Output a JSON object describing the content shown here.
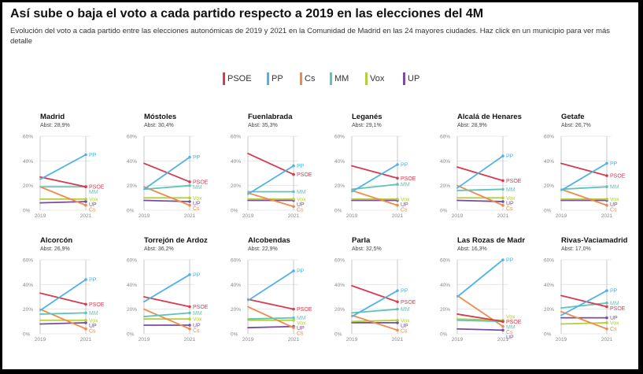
{
  "title": "Así sube o baja el voto a cada partido respecto a 2019 en las elecciones del 4M",
  "subtitle": "Evolución del voto a cada partido entre las elecciones autonómicas de 2019 y 2021 en la Comunidad de Madrid en las 24 mayores ciudades. Haz click en un municipio para ver más detalle",
  "legend": [
    {
      "party": "PSOE",
      "color": "#d93a4e"
    },
    {
      "party": "PP",
      "color": "#4fb3e6"
    },
    {
      "party": "Cs",
      "color": "#f08a4b"
    },
    {
      "party": "MM",
      "color": "#5fc4b6"
    },
    {
      "party": "Vox",
      "color": "#b2cf3c"
    },
    {
      "party": "UP",
      "color": "#7b4ba0"
    }
  ],
  "chart_data": {
    "type": "line",
    "x": [
      "2019",
      "2021"
    ],
    "ylim": [
      0,
      60
    ],
    "yticks": [
      "0%",
      "20%",
      "40%",
      "60%"
    ],
    "panels": [
      {
        "city": "Madrid",
        "abst": "Abst: 28,9%",
        "series": [
          {
            "name": "PSOE",
            "values": [
              27,
              19
            ]
          },
          {
            "name": "PP",
            "values": [
              25,
              45
            ]
          },
          {
            "name": "Cs",
            "values": [
              19,
              4
            ]
          },
          {
            "name": "MM",
            "values": [
              19,
              19
            ]
          },
          {
            "name": "Vox",
            "values": [
              9,
              9
            ]
          },
          {
            "name": "UP",
            "values": [
              6,
              7
            ]
          }
        ],
        "end_labels": [
          "PSOE",
          "PP",
          "Cs",
          "MM",
          "Vox",
          "UP"
        ]
      },
      {
        "city": "Móstoles",
        "abst": "Abst: 30,4%",
        "series": [
          {
            "name": "PSOE",
            "values": [
              38,
              23
            ]
          },
          {
            "name": "PP",
            "values": [
              17,
              43
            ]
          },
          {
            "name": "Cs",
            "values": [
              19,
              4
            ]
          },
          {
            "name": "MM",
            "values": [
              17,
              20
            ]
          },
          {
            "name": "Vox",
            "values": [
              10,
              10
            ]
          },
          {
            "name": "UP",
            "values": [
              8,
              7
            ]
          }
        ],
        "end_labels": [
          "PSOE",
          "PP",
          "Cs",
          "MM",
          "Vox",
          "UP"
        ]
      },
      {
        "city": "Fuenlabrada",
        "abst": "Abst: 35,3%",
        "series": [
          {
            "name": "PSOE",
            "values": [
              46,
              29
            ]
          },
          {
            "name": "PP",
            "values": [
              13,
              36
            ]
          },
          {
            "name": "Cs",
            "values": [
              14,
              3
            ]
          },
          {
            "name": "MM",
            "values": [
              15,
              15
            ]
          },
          {
            "name": "Vox",
            "values": [
              9,
              9
            ]
          },
          {
            "name": "UP",
            "values": [
              8,
              8
            ]
          }
        ],
        "end_labels": [
          "PSOE",
          "PP",
          "Cs",
          "MM",
          "Vox",
          "UP"
        ]
      },
      {
        "city": "Leganés",
        "abst": "Abst: 29,1%",
        "series": [
          {
            "name": "PSOE",
            "values": [
              36,
              26
            ]
          },
          {
            "name": "PP",
            "values": [
              15,
              37
            ]
          },
          {
            "name": "Cs",
            "values": [
              16,
              4
            ]
          },
          {
            "name": "MM",
            "values": [
              17,
              21
            ]
          },
          {
            "name": "Vox",
            "values": [
              9,
              9
            ]
          },
          {
            "name": "UP",
            "values": [
              8,
              8
            ]
          }
        ],
        "end_labels": [
          "PSOE",
          "PP",
          "Cs",
          "MM",
          "Vox",
          "UP"
        ]
      },
      {
        "city": "Alcalá de Henares",
        "abst": "Abst: 28,9%",
        "series": [
          {
            "name": "PSOE",
            "values": [
              35,
              24
            ]
          },
          {
            "name": "PP",
            "values": [
              18,
              44
            ]
          },
          {
            "name": "Cs",
            "values": [
              20,
              4
            ]
          },
          {
            "name": "MM",
            "values": [
              16,
              17
            ]
          },
          {
            "name": "Vox",
            "values": [
              10,
              10
            ]
          },
          {
            "name": "UP",
            "values": [
              8,
              7
            ]
          }
        ],
        "end_labels": [
          "PSOE",
          "PP",
          "Cs",
          "MM",
          "Vox",
          "UP"
        ]
      },
      {
        "city": "Getafe",
        "abst": "Abst: 26,7%",
        "series": [
          {
            "name": "PSOE",
            "values": [
              38,
              28
            ]
          },
          {
            "name": "PP",
            "values": [
              16,
              38
            ]
          },
          {
            "name": "Cs",
            "values": [
              17,
              4
            ]
          },
          {
            "name": "MM",
            "values": [
              17,
              19
            ]
          },
          {
            "name": "Vox",
            "values": [
              9,
              9
            ]
          },
          {
            "name": "UP",
            "values": [
              8,
              8
            ]
          }
        ],
        "end_labels": [
          "PSOE",
          "PP",
          "Cs",
          "MM",
          "Vox",
          "UP"
        ]
      },
      {
        "city": "Alcorcón",
        "abst": "Abst: 26,9%",
        "series": [
          {
            "name": "PSOE",
            "values": [
              33,
              24
            ]
          },
          {
            "name": "PP",
            "values": [
              19,
              44
            ]
          },
          {
            "name": "Cs",
            "values": [
              20,
              4
            ]
          },
          {
            "name": "MM",
            "values": [
              16,
              17
            ]
          },
          {
            "name": "Vox",
            "values": [
              11,
              11
            ]
          },
          {
            "name": "UP",
            "values": [
              8,
              9
            ]
          }
        ],
        "end_labels": [
          "PSOE",
          "PP",
          "Cs",
          "MM",
          "Vox",
          "UP"
        ]
      },
      {
        "city": "Torrejón de Ardoz",
        "abst": "Abst: 36,2%",
        "series": [
          {
            "name": "PSOE",
            "values": [
              30,
              22
            ]
          },
          {
            "name": "PP",
            "values": [
              26,
              48
            ]
          },
          {
            "name": "Cs",
            "values": [
              20,
              4
            ]
          },
          {
            "name": "MM",
            "values": [
              14,
              17
            ]
          },
          {
            "name": "Vox",
            "values": [
              12,
              12
            ]
          },
          {
            "name": "UP",
            "values": [
              7,
              7
            ]
          }
        ],
        "end_labels": [
          "PSOE",
          "PP",
          "Cs",
          "MM",
          "Vox",
          "UP"
        ]
      },
      {
        "city": "Alcobendas",
        "abst": "Abst: 22,9%",
        "series": [
          {
            "name": "PSOE",
            "values": [
              28,
              20
            ]
          },
          {
            "name": "PP",
            "values": [
              27,
              51
            ]
          },
          {
            "name": "Cs",
            "values": [
              22,
              5
            ]
          },
          {
            "name": "MM",
            "values": [
              12,
              13
            ]
          },
          {
            "name": "Vox",
            "values": [
              11,
              11
            ]
          },
          {
            "name": "UP",
            "values": [
              5,
              6
            ]
          }
        ],
        "end_labels": [
          "PSOE",
          "PP",
          "Cs",
          "MM",
          "Vox",
          "UP"
        ]
      },
      {
        "city": "Parla",
        "abst": "Abst: 32,5%",
        "series": [
          {
            "name": "PSOE",
            "values": [
              39,
              26
            ]
          },
          {
            "name": "PP",
            "values": [
              14,
              35
            ]
          },
          {
            "name": "Cs",
            "values": [
              15,
              3
            ]
          },
          {
            "name": "MM",
            "values": [
              17,
              20
            ]
          },
          {
            "name": "Vox",
            "values": [
              10,
              11
            ]
          },
          {
            "name": "UP",
            "values": [
              9,
              9
            ]
          }
        ],
        "end_labels": [
          "PSOE",
          "PP",
          "Cs",
          "MM",
          "Vox",
          "UP"
        ]
      },
      {
        "city": "Las Rozas de Madr",
        "abst": "Abst: 16,3%",
        "series": [
          {
            "name": "PSOE",
            "values": [
              16,
              10
            ]
          },
          {
            "name": "PP",
            "values": [
              30,
              60
            ]
          },
          {
            "name": "Cs",
            "values": [
              31,
              6
            ]
          },
          {
            "name": "MM",
            "values": [
              11,
              10
            ]
          },
          {
            "name": "Vox",
            "values": [
              12,
              11
            ]
          },
          {
            "name": "UP",
            "values": [
              4,
              3
            ]
          }
        ],
        "end_labels": [
          "PSOE",
          "PP",
          "Cs",
          "MM",
          "Vox",
          "UP"
        ]
      },
      {
        "city": "Rivas-Vaciamadrid",
        "abst": "Abst: 17,0%",
        "series": [
          {
            "name": "PSOE",
            "values": [
              31,
              22
            ]
          },
          {
            "name": "PP",
            "values": [
              15,
              35
            ]
          },
          {
            "name": "Cs",
            "values": [
              18,
              4
            ]
          },
          {
            "name": "MM",
            "values": [
              21,
              25
            ]
          },
          {
            "name": "Vox",
            "values": [
              8,
              9
            ]
          },
          {
            "name": "UP",
            "values": [
              13,
              13
            ]
          }
        ],
        "end_labels": [
          "PSOE",
          "PP",
          "Cs",
          "MM",
          "Vox",
          "UP"
        ]
      }
    ]
  }
}
